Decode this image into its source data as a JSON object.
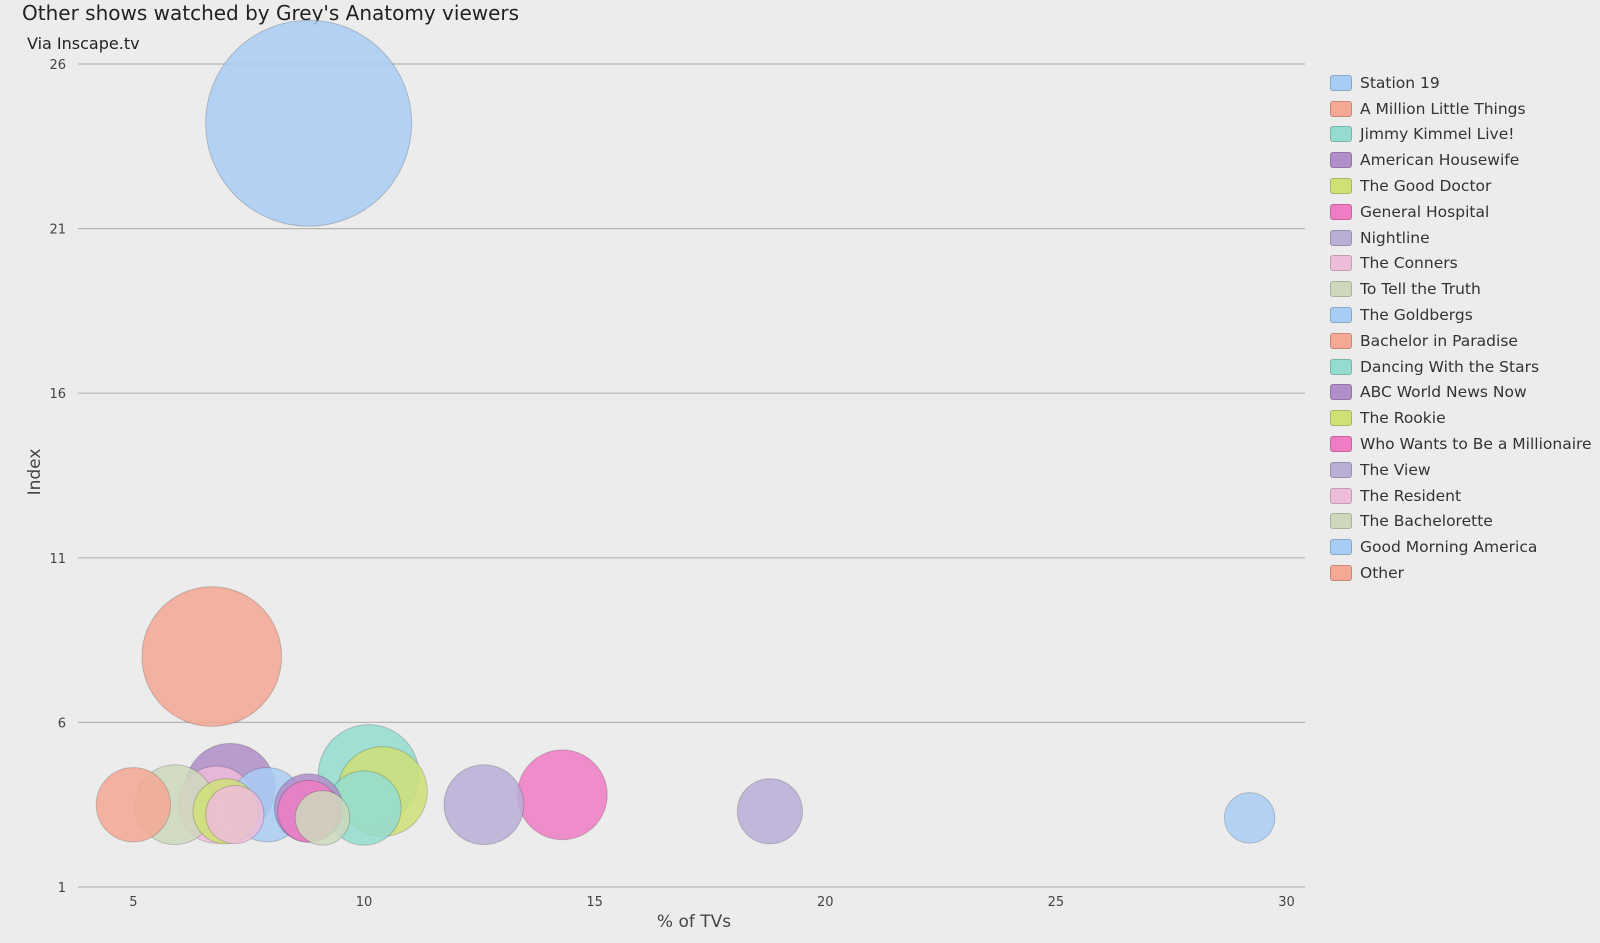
{
  "chart_data": {
    "type": "scatter",
    "title": "Other shows watched by Grey's Anatomy viewers",
    "subtitle": "Via Inscape.tv",
    "xlabel": "% of TVs",
    "ylabel": "Index",
    "xlim": [
      3.8,
      30.4
    ],
    "ylim": [
      1,
      26
    ],
    "xticks": [
      5,
      10,
      15,
      20,
      25,
      30
    ],
    "yticks": [
      1,
      6,
      11,
      16,
      21,
      26
    ],
    "grid": "horizontal",
    "legend_position": "right",
    "bubble_size": "proportional",
    "series": [
      {
        "name": "Station 19",
        "color": "#a8cdf5",
        "x": 8.8,
        "y": 24.2,
        "size": 100
      },
      {
        "name": "A Million Little Things",
        "color": "#f5a894",
        "x": 6.7,
        "y": 8.0,
        "size": 46
      },
      {
        "name": "Jimmy Kimmel Live!",
        "color": "#94dcd0",
        "x": 10.1,
        "y": 4.4,
        "size": 24
      },
      {
        "name": "American Housewife",
        "color": "#b08ec9",
        "x": 7.1,
        "y": 4.0,
        "size": 19
      },
      {
        "name": "The Good Doctor",
        "color": "#cfe077",
        "x": 10.4,
        "y": 3.9,
        "size": 19
      },
      {
        "name": "General Hospital",
        "color": "#ef7cc4",
        "x": 14.3,
        "y": 3.8,
        "size": 19
      },
      {
        "name": "Nightline",
        "color": "#baaed7",
        "x": 12.6,
        "y": 3.5,
        "size": 15
      },
      {
        "name": "The Conners",
        "color": "#edbcd9",
        "x": 6.8,
        "y": 3.5,
        "size": 14
      },
      {
        "name": "To Tell the Truth",
        "color": "#ced8bc",
        "x": 5.9,
        "y": 3.5,
        "size": 15
      },
      {
        "name": "The Goldbergs",
        "color": "#a8cdf5",
        "x": 7.9,
        "y": 3.5,
        "size": 13
      },
      {
        "name": "Bachelor in Paradise",
        "color": "#f5a894",
        "x": 5.0,
        "y": 3.5,
        "size": 13
      },
      {
        "name": "Dancing With the Stars",
        "color": "#94dcd0",
        "x": 10.0,
        "y": 3.4,
        "size": 13
      },
      {
        "name": "ABC World News Now",
        "color": "#b08ec9",
        "x": 8.8,
        "y": 3.4,
        "size": 11
      },
      {
        "name": "The Rookie",
        "color": "#cfe077",
        "x": 7.0,
        "y": 3.3,
        "size": 10
      },
      {
        "name": "Who Wants to Be a Millionaire",
        "color": "#ef7cc4",
        "x": 8.8,
        "y": 3.3,
        "size": 9
      },
      {
        "name": "The View",
        "color": "#baaed7",
        "x": 18.8,
        "y": 3.3,
        "size": 10
      },
      {
        "name": "The Resident",
        "color": "#edbcd9",
        "x": 7.2,
        "y": 3.2,
        "size": 8
      },
      {
        "name": "The Bachelorette",
        "color": "#ced8bc",
        "x": 9.1,
        "y": 3.1,
        "size": 7
      },
      {
        "name": "Good Morning America",
        "color": "#a8cdf5",
        "x": 29.2,
        "y": 3.1,
        "size": 6
      },
      {
        "name": "Other",
        "color": "#f5a894"
      }
    ]
  }
}
